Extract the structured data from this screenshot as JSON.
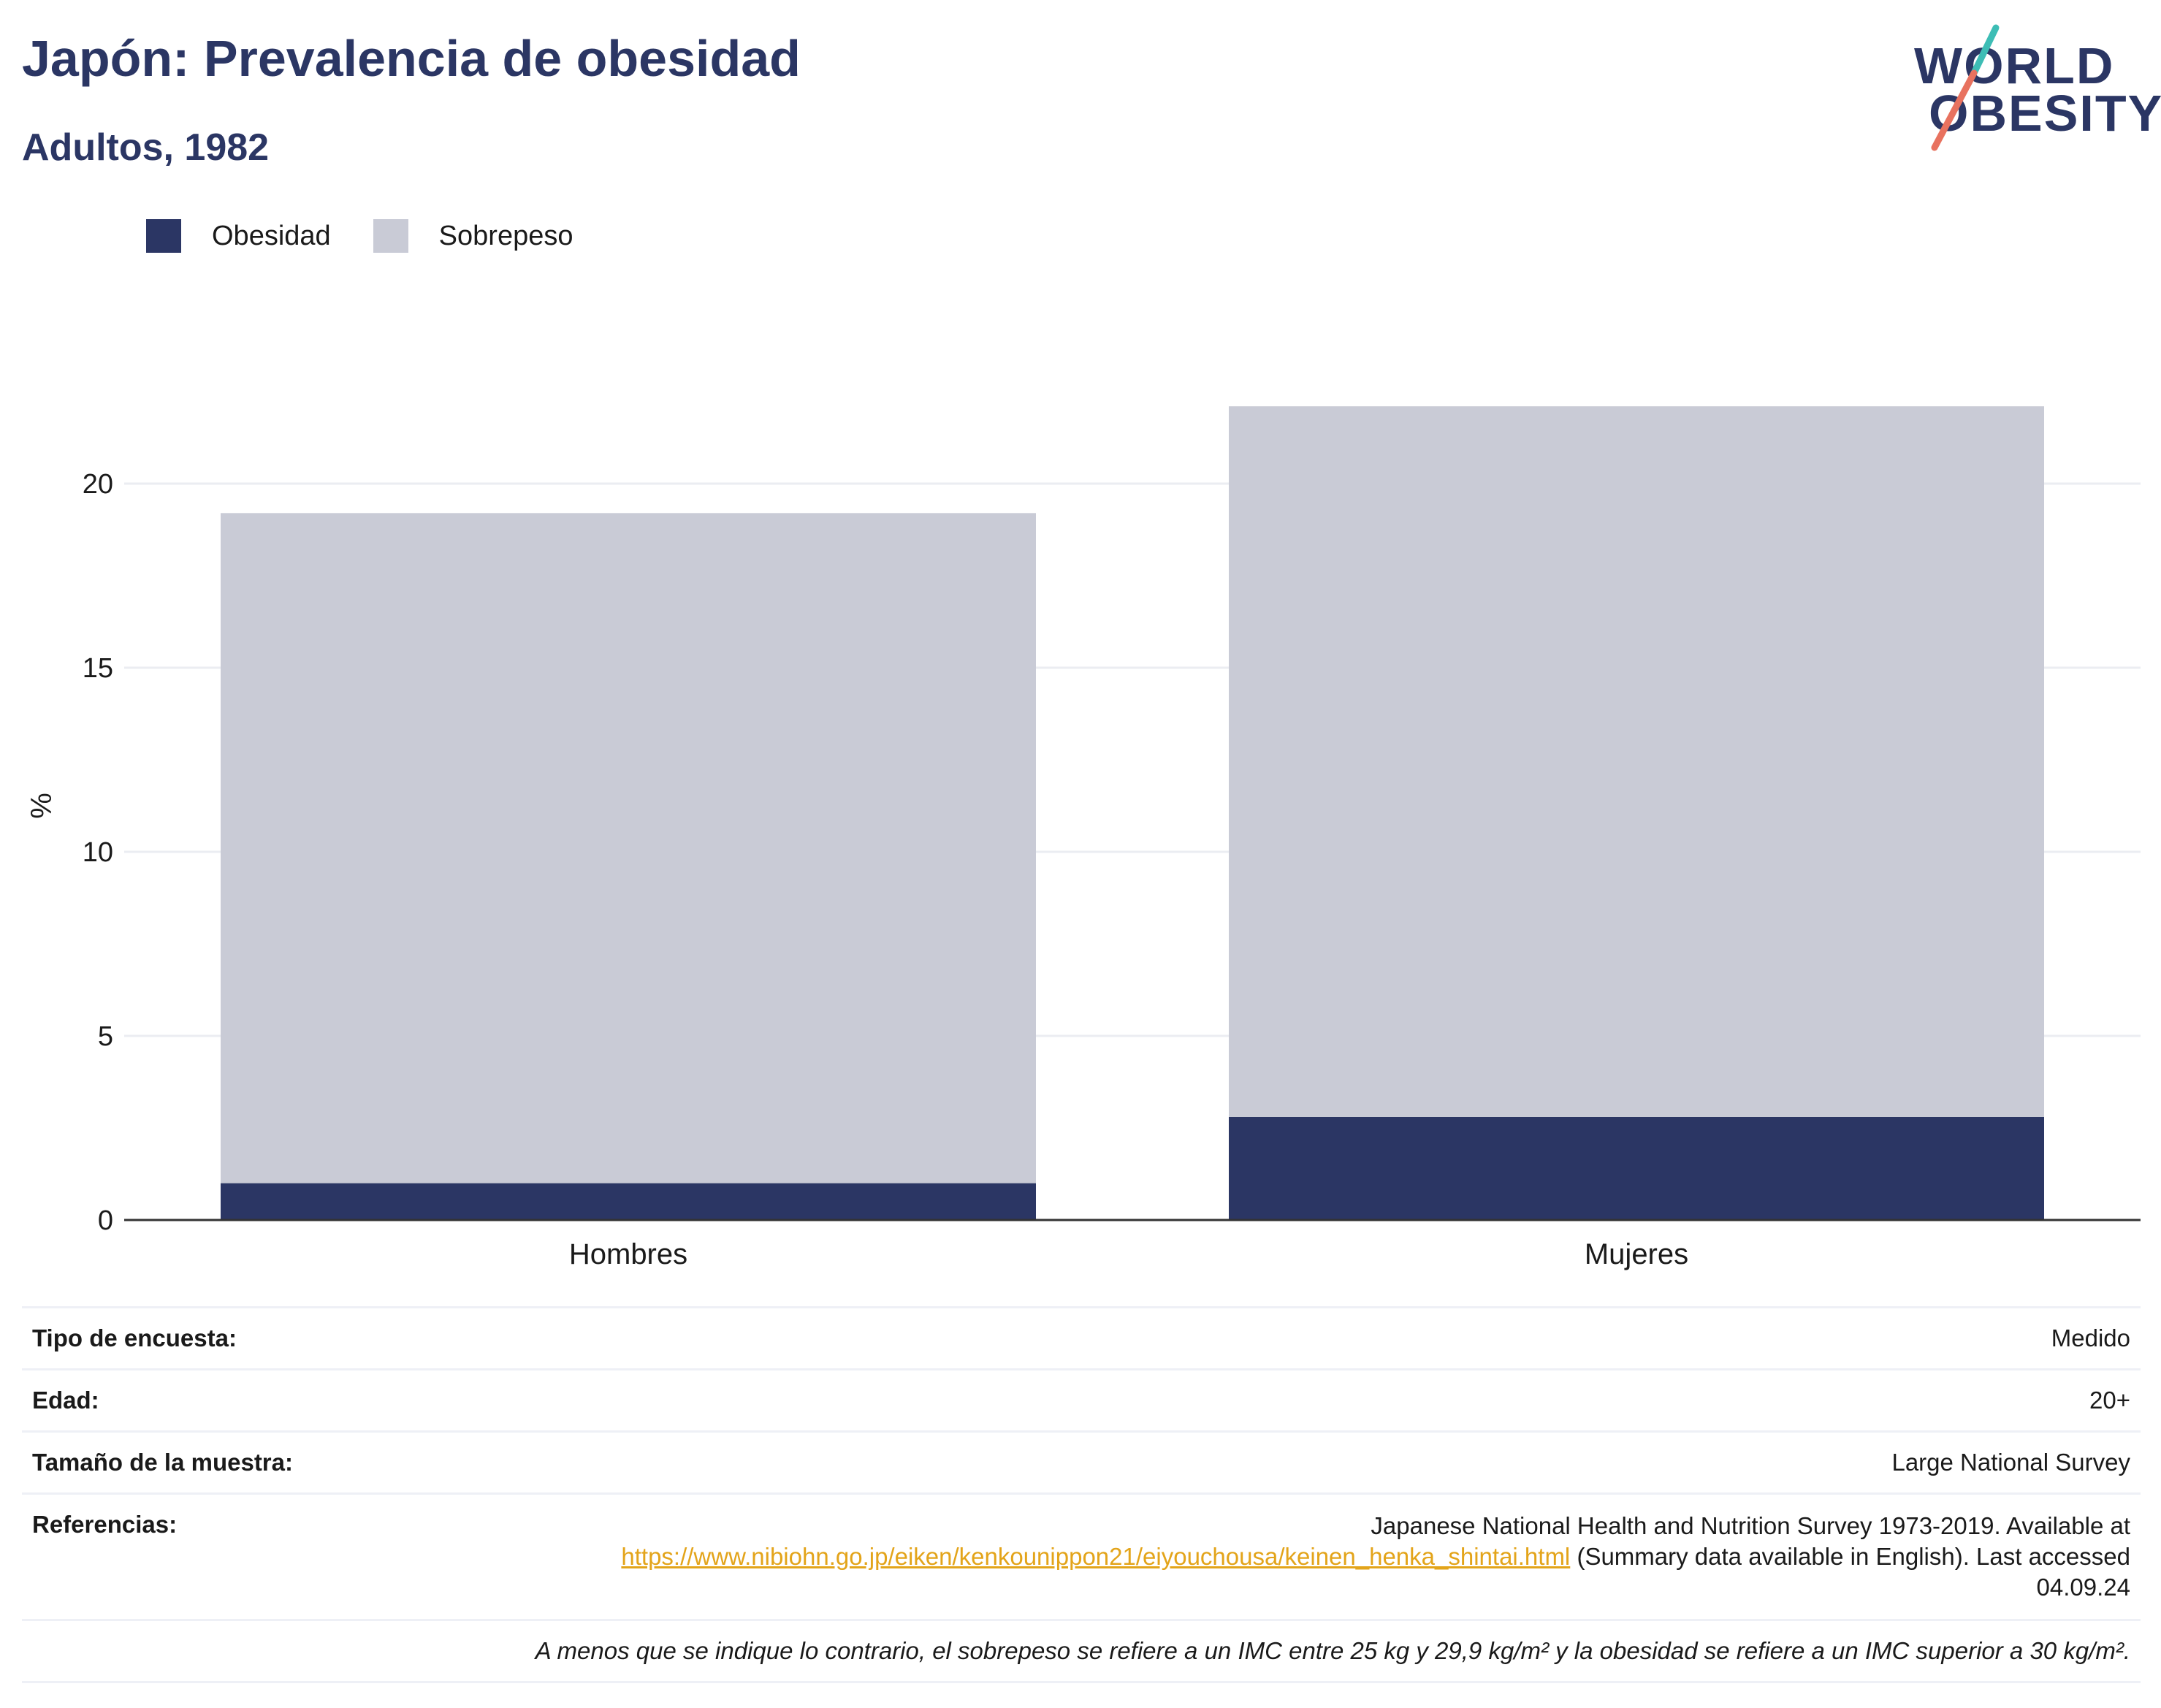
{
  "header": {
    "title": "Japón: Prevalencia de obesidad",
    "subtitle": "Adultos, 1982",
    "logo_line1": "WORLD",
    "logo_line2": "OBESITY"
  },
  "legend": [
    {
      "label": "Obesidad",
      "color": "#2b3664"
    },
    {
      "label": "Sobrepeso",
      "color": "#c9cbd6"
    }
  ],
  "chart_data": {
    "type": "bar",
    "stacked": true,
    "categories": [
      "Hombres",
      "Mujeres"
    ],
    "series": [
      {
        "name": "Obesidad",
        "color": "#2b3664",
        "values": [
          1.0,
          2.8
        ]
      },
      {
        "name": "Sobrepeso",
        "color": "#c9cbd6",
        "values": [
          18.2,
          19.3
        ]
      }
    ],
    "ylabel": "%",
    "ylim": [
      0,
      22.5
    ],
    "yticks": [
      0,
      5,
      10,
      15,
      20
    ],
    "grid": true,
    "legend_position": "top-left"
  },
  "info": {
    "rows": [
      {
        "key": "Tipo de encuesta:",
        "value": "Medido"
      },
      {
        "key": "Edad:",
        "value": "20+"
      },
      {
        "key": "Tamaño de la muestra:",
        "value": "Large National Survey"
      }
    ],
    "references": {
      "key": "Referencias:",
      "text_before": "Japanese National Health and Nutrition Survey 1973-2019. Available at",
      "link": "https://www.nibiohn.go.jp/eiken/kenkounippon21/eiyouchousa/keinen_henka_shintai.html",
      "text_after": "(Summary data available in English). Last accessed 04.09.24"
    },
    "note": "A menos que se indique lo contrario, el sobrepeso se refiere a un IMC entre 25 kg y 29,9 kg/m² y la obesidad se refiere a un IMC superior a 30 kg/m²."
  }
}
